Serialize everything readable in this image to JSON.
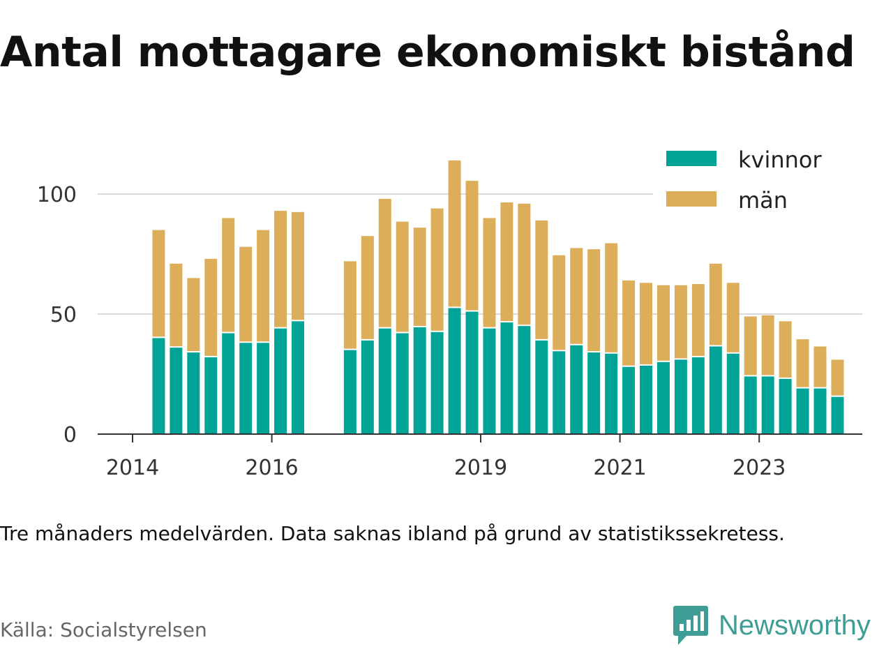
{
  "title": "Antal mottagare ekonomiskt bistånd",
  "note": "Tre månaders medelvärden. Data saknas ibland på grund av statistikssekretess.",
  "source": "Källa: Socialstyrelsen",
  "brand": {
    "name": "Newsworthy",
    "icon": "newsworthy-logo-icon",
    "color": "#3e9d94"
  },
  "chart_data": {
    "type": "bar",
    "stacked": true,
    "x_tick_labels": [
      "2014",
      "2016",
      "2019",
      "2021",
      "2023"
    ],
    "y_tick_labels": [
      "0",
      "50",
      "100"
    ],
    "y_ticks": [
      0,
      50,
      100
    ],
    "ylim": [
      0,
      120
    ],
    "grid": "horizontal",
    "legend_position": "top-right",
    "categories": [
      "2014-Q2",
      "2014-Q3",
      "2014-Q4",
      "2015-Q1",
      "2015-Q2",
      "2015-Q3",
      "2015-Q4",
      "2016-Q1",
      "2016-Q2",
      "2017-Q1",
      "2017-Q2",
      "2017-Q3",
      "2017-Q4",
      "2018-Q1",
      "2018-Q2",
      "2018-Q3",
      "2018-Q4",
      "2019-Q1",
      "2019-Q2",
      "2019-Q3",
      "2019-Q4",
      "2020-Q1",
      "2020-Q2",
      "2020-Q3",
      "2020-Q4",
      "2021-Q1",
      "2021-Q2",
      "2021-Q3",
      "2021-Q4",
      "2022-Q1",
      "2022-Q2",
      "2022-Q3",
      "2022-Q4",
      "2023-Q1",
      "2023-Q2",
      "2023-Q3",
      "2023-Q4",
      "2024-Q1"
    ],
    "x_ticks": [
      "2014-Q1",
      "2016-Q1",
      "2019-Q1",
      "2021-Q1",
      "2023-Q1"
    ],
    "series": [
      {
        "name": "kvinnor",
        "color": "#00a396",
        "values": [
          40,
          36,
          34,
          32,
          42,
          38,
          38,
          44,
          47,
          35,
          39,
          44,
          42,
          44.5,
          42.5,
          52.5,
          51,
          44,
          46.5,
          45,
          39,
          34.5,
          37,
          34,
          33.5,
          28,
          28.5,
          30,
          31,
          32,
          36.5,
          33.5,
          24,
          24,
          23,
          19,
          19,
          15.5
        ]
      },
      {
        "name": "män",
        "color": "#dcae5a",
        "values": [
          45,
          35,
          31,
          41,
          48,
          40,
          47,
          49,
          45.5,
          37,
          43.5,
          54,
          46.5,
          41.5,
          51.5,
          61.5,
          54.5,
          46,
          50,
          51,
          50,
          40,
          40.5,
          43,
          46,
          36,
          34.5,
          32,
          31,
          30.5,
          34.5,
          29.5,
          25,
          25.5,
          24,
          20.5,
          17.5,
          15.5
        ]
      }
    ]
  }
}
